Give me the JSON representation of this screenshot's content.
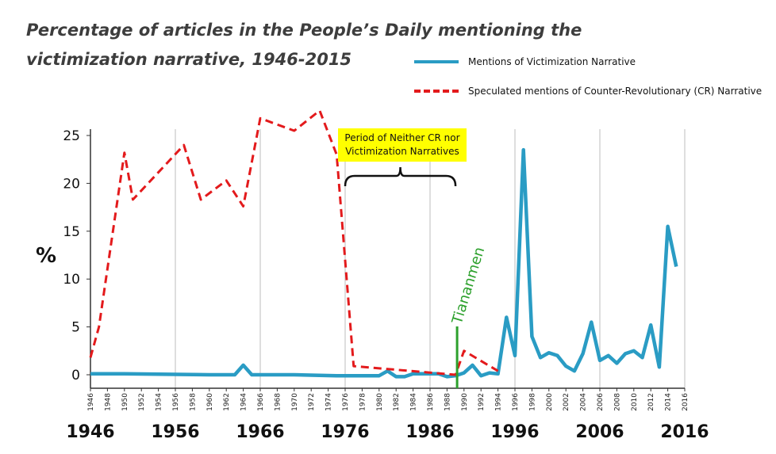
{
  "title": "Percentage of articles in the People’s Daily mentioning the victimization narrative, 1946-2015",
  "legend": [
    {
      "label": "Mentions of Victimization Narrative",
      "color": "#2a9cc4",
      "style": "solid"
    },
    {
      "label": "Speculated mentions of Counter-Revolutionary (CR) Narrative",
      "color": "#e31a1c",
      "style": "dashed"
    }
  ],
  "annotations": {
    "period_box": [
      "Period of Neither CR nor",
      "Victimization Narratives"
    ],
    "period_box_color": "#ffff00",
    "event_label": "Tiananmen",
    "event_color": "#2ca02c",
    "event_year": 1989
  },
  "chart_data": {
    "type": "line",
    "xlabel": "",
    "ylabel": "%",
    "xlim": [
      1946,
      2016
    ],
    "ylim": [
      0,
      25
    ],
    "yticks": [
      0,
      5,
      10,
      15,
      20,
      25
    ],
    "xticks_small": [
      1946,
      1948,
      1950,
      1952,
      1954,
      1956,
      1958,
      1960,
      1962,
      1964,
      1966,
      1968,
      1970,
      1972,
      1974,
      1976,
      1978,
      1980,
      1982,
      1984,
      1986,
      1988,
      1990,
      1992,
      1994,
      1996,
      1998,
      2000,
      2002,
      2004,
      2006,
      2008,
      2010,
      2012,
      2014,
      2016
    ],
    "xticks_large": [
      1946,
      1956,
      1966,
      1976,
      1986,
      1996,
      2006,
      2016
    ],
    "grid": "vertical",
    "series": [
      {
        "name": "Mentions of Victimization Narrative",
        "color": "#2a9cc4",
        "style": "solid",
        "points": [
          [
            1946,
            0.1
          ],
          [
            1950,
            0.1
          ],
          [
            1955,
            0.05
          ],
          [
            1960,
            0
          ],
          [
            1963,
            0
          ],
          [
            1964,
            1.0
          ],
          [
            1965,
            0
          ],
          [
            1970,
            0
          ],
          [
            1975,
            -0.1
          ],
          [
            1980,
            -0.1
          ],
          [
            1981,
            0.4
          ],
          [
            1982,
            -0.2
          ],
          [
            1983,
            -0.2
          ],
          [
            1984,
            0.1
          ],
          [
            1985,
            0.1
          ],
          [
            1986,
            0.1
          ],
          [
            1987,
            0.1
          ],
          [
            1988,
            -0.2
          ],
          [
            1989,
            -0.1
          ],
          [
            1990,
            0.2
          ],
          [
            1991,
            1.0
          ],
          [
            1992,
            -0.1
          ],
          [
            1993,
            0.2
          ],
          [
            1994,
            0.1
          ],
          [
            1995,
            6.0
          ],
          [
            1996,
            2.0
          ],
          [
            1997,
            23.5
          ],
          [
            1998,
            4.0
          ],
          [
            1999,
            1.8
          ],
          [
            2000,
            2.3
          ],
          [
            2001,
            2.0
          ],
          [
            2002,
            0.9
          ],
          [
            2003,
            0.4
          ],
          [
            2004,
            2.2
          ],
          [
            2005,
            5.5
          ],
          [
            2006,
            1.5
          ],
          [
            2007,
            2.0
          ],
          [
            2008,
            1.2
          ],
          [
            2009,
            2.2
          ],
          [
            2010,
            2.5
          ],
          [
            2011,
            1.8
          ],
          [
            2012,
            5.2
          ],
          [
            2013,
            0.8
          ],
          [
            2014,
            15.5
          ],
          [
            2015,
            11.3
          ]
        ]
      },
      {
        "name": "Speculated mentions of Counter-Revolutionary (CR) Narrative",
        "color": "#e31a1c",
        "style": "dashed",
        "points": [
          [
            1946,
            1.8
          ],
          [
            1947,
            5.0
          ],
          [
            1950,
            23.2
          ],
          [
            1951,
            18.3
          ],
          [
            1957,
            24.0
          ],
          [
            1959,
            18.3
          ],
          [
            1962,
            20.3
          ],
          [
            1964,
            17.6
          ],
          [
            1966,
            26.8
          ],
          [
            1970,
            25.5
          ],
          [
            1973,
            27.6
          ],
          [
            1975,
            23.0
          ],
          [
            1977,
            0.9
          ],
          [
            1989,
            0
          ],
          [
            1990,
            2.5
          ],
          [
            1994,
            0.4
          ]
        ]
      }
    ]
  }
}
